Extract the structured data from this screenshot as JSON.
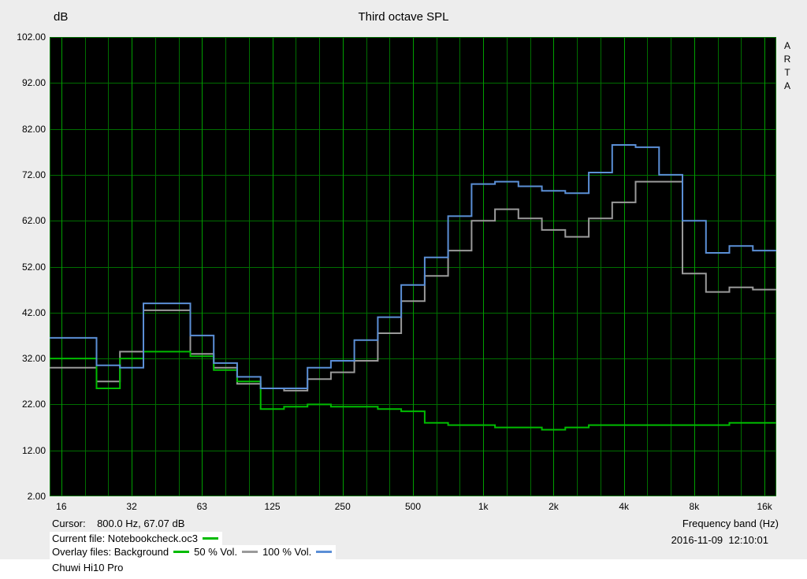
{
  "window": {
    "title": "Third octave SPL",
    "y_axis_unit": "dB",
    "watermark": "ARTA"
  },
  "footer": {
    "cursor_readout": "Cursor:    800.0 Hz, 67.07 dB",
    "current_file": "Current file: Notebookcheck.oc3",
    "overlay_files_prefix": "Overlay files: Background",
    "overlay_50": "50 % Vol.",
    "overlay_100": "100 % Vol.",
    "x_axis_label": "Frequency band (Hz)",
    "datetime": "2016-11-09  12:10:01",
    "caption": "Chuwi Hi10 Pro"
  },
  "chart_data": {
    "type": "line",
    "style": "third_octave_step",
    "title": "Third octave SPL",
    "xlabel": "Frequency band (Hz)",
    "ylabel": "dB",
    "ylim": [
      2,
      102
    ],
    "ytick_labels": [
      "102.00",
      "92.00",
      "82.00",
      "72.00",
      "62.00",
      "52.00",
      "42.00",
      "32.00",
      "22.00",
      "12.00",
      "2.00"
    ],
    "x_bands_hz": [
      16,
      20,
      25,
      31.5,
      40,
      50,
      63,
      80,
      100,
      125,
      160,
      200,
      250,
      315,
      400,
      500,
      630,
      800,
      1000,
      1250,
      1600,
      2000,
      2500,
      3150,
      4000,
      5000,
      6300,
      8000,
      10000,
      12500,
      16000
    ],
    "x_tick_labels": [
      "16",
      "32",
      "63",
      "125",
      "250",
      "500",
      "1k",
      "2k",
      "4k",
      "8k",
      "16k"
    ],
    "x_tick_band_indices": [
      0,
      3,
      6,
      9,
      12,
      15,
      18,
      21,
      24,
      27,
      30
    ],
    "plot_bg": "#000000",
    "grid": {
      "on": true,
      "color": "#006e00",
      "major_color": "#00a000"
    },
    "legend_position": "bottom-left",
    "series": [
      {
        "name": "Background",
        "color": "#00bb00",
        "values": [
          32,
          32,
          25.5,
          32,
          33.5,
          33.5,
          32.5,
          29.5,
          27,
          21,
          21.5,
          22,
          21.5,
          21.5,
          21,
          20.5,
          18,
          17.5,
          17.5,
          17,
          17,
          16.5,
          17,
          17.5,
          17.5,
          17.5,
          17.5,
          17.5,
          17.5,
          18,
          18
        ]
      },
      {
        "name": "50 % Vol.",
        "color": "#9a9a9a",
        "values": [
          30,
          30,
          27,
          33.5,
          42.5,
          42.5,
          33,
          30,
          26.5,
          25.5,
          25,
          27.5,
          29,
          31.5,
          37.5,
          44.5,
          50,
          55.5,
          62,
          64.5,
          62.5,
          60,
          58.5,
          62.5,
          66,
          70.5,
          70.5,
          50.5,
          46.5,
          47.5,
          47
        ]
      },
      {
        "name": "100 % Vol.",
        "color": "#5b8fd6",
        "values": [
          36.5,
          36.5,
          30.5,
          30,
          44,
          44,
          37,
          31,
          28,
          25.5,
          25.5,
          30,
          31.5,
          36,
          41,
          48,
          54,
          63,
          70,
          70.5,
          69.5,
          68.5,
          68,
          72.5,
          78.5,
          78,
          72,
          62,
          55,
          56.5,
          55.5
        ]
      }
    ]
  }
}
